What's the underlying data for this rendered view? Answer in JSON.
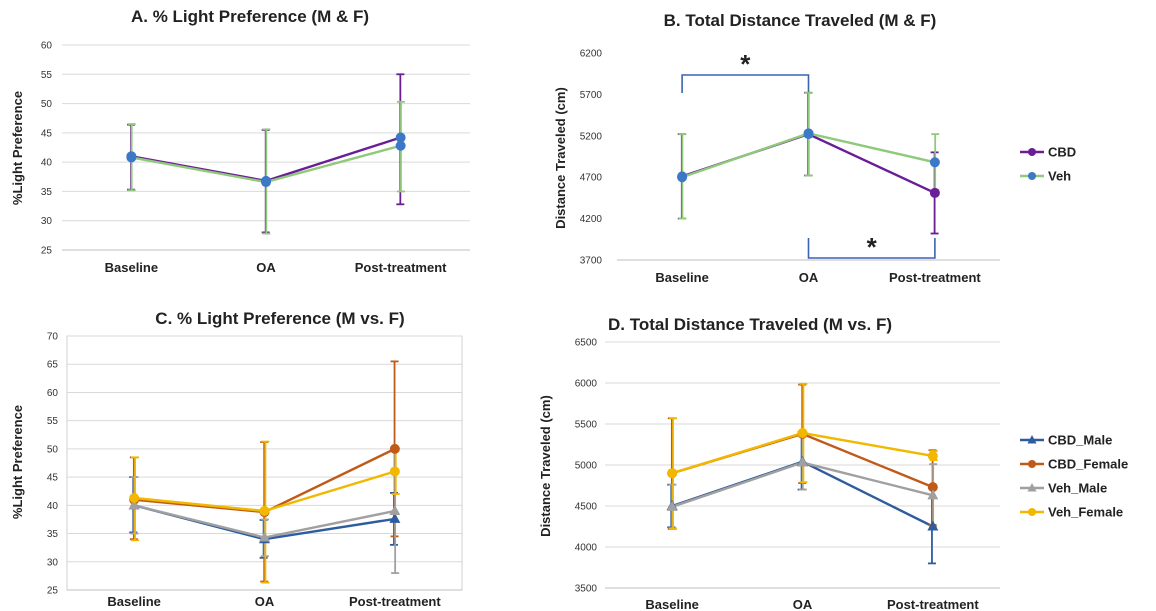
{
  "chart_data": [
    {
      "id": "A",
      "type": "line",
      "title": "A. % Light Preference (M & F)",
      "ylabel": "%Light Preference",
      "xlabel": "",
      "categories": [
        "Baseline",
        "OA",
        "Post-treatment"
      ],
      "ylim": [
        25,
        60
      ],
      "yticks": [
        25,
        30,
        35,
        40,
        45,
        50,
        55,
        60
      ],
      "grid": true,
      "series": [
        {
          "name": "CBD",
          "color": "#6a1e96",
          "marker": "circle",
          "values": [
            41,
            36.8,
            44.2
          ],
          "err_low": [
            35.3,
            28.0,
            32.8
          ],
          "err_high": [
            46.4,
            45.5,
            55.0
          ]
        },
        {
          "name": "Veh",
          "color": "#8fc97a",
          "marker": "circle",
          "values": [
            40.8,
            36.6,
            42.8
          ],
          "err_low": [
            35.2,
            27.8,
            35.0
          ],
          "err_high": [
            46.5,
            45.6,
            50.3
          ]
        }
      ]
    },
    {
      "id": "B",
      "type": "line",
      "title": "B. Total Distance Traveled (M & F)",
      "ylabel": "Distance Traveled (cm)",
      "xlabel": "",
      "categories": [
        "Baseline",
        "OA",
        "Post-treatment"
      ],
      "ylim": [
        3700,
        6200
      ],
      "yticks": [
        3700,
        4200,
        4700,
        5200,
        5700,
        6200
      ],
      "grid": false,
      "legend": {
        "position": "right",
        "entries": [
          "CBD",
          "Veh"
        ]
      },
      "annotations": [
        {
          "text": "*",
          "between": [
            "Baseline",
            "OA"
          ],
          "side": "top"
        },
        {
          "text": "*",
          "between": [
            "OA",
            "Post-treatment"
          ],
          "side": "bottom"
        }
      ],
      "series": [
        {
          "name": "CBD",
          "color": "#6a1e96",
          "marker": "circle",
          "values": [
            4710,
            5220,
            4510
          ],
          "err_low": [
            4200,
            4720,
            4020
          ],
          "err_high": [
            5220,
            5720,
            5000
          ]
        },
        {
          "name": "Veh",
          "color": "#8fc97a",
          "marker": "circle",
          "values": [
            4700,
            5230,
            4880
          ],
          "err_low": [
            4200,
            4720,
            4550
          ],
          "err_high": [
            5220,
            5720,
            5220
          ]
        }
      ]
    },
    {
      "id": "C",
      "type": "line",
      "title": "C. % Light Preference (M vs. F)",
      "ylabel": "%Light  Preference",
      "xlabel": "",
      "categories": [
        "Baseline",
        "OA",
        "Post-treatment"
      ],
      "ylim": [
        25,
        70
      ],
      "yticks": [
        25,
        30,
        35,
        40,
        45,
        50,
        55,
        60,
        65,
        70
      ],
      "grid": true,
      "series": [
        {
          "name": "CBD_Male",
          "color": "#2e5c9e",
          "marker": "triangle",
          "values": [
            40.0,
            34.0,
            37.6
          ],
          "err_low": [
            35.2,
            30.7,
            33.0
          ],
          "err_high": [
            45.0,
            37.4,
            42.2
          ]
        },
        {
          "name": "CBD_Female",
          "color": "#c05a18",
          "marker": "circle",
          "values": [
            41.0,
            38.8,
            50.0
          ],
          "err_low": [
            34.0,
            26.5,
            34.5
          ],
          "err_high": [
            48.5,
            51.2,
            65.5
          ]
        },
        {
          "name": "Veh_Male",
          "color": "#a0a0a0",
          "marker": "triangle",
          "values": [
            40.0,
            34.3,
            39.0
          ],
          "err_low": [
            35.0,
            31.0,
            28.0
          ],
          "err_high": [
            45.0,
            37.5,
            50.2
          ]
        },
        {
          "name": "Veh_Female",
          "color": "#f2b800",
          "marker": "circle",
          "values": [
            41.3,
            39.0,
            46.0
          ],
          "err_low": [
            33.8,
            26.3,
            42.0
          ],
          "err_high": [
            48.5,
            51.3,
            50.0
          ]
        }
      ]
    },
    {
      "id": "D",
      "type": "line",
      "title": "D. Total Distance Traveled (M vs. F)",
      "ylabel": "Distance Traveled (cm)",
      "xlabel": "",
      "categories": [
        "Baseline",
        "OA",
        "Post-treatment"
      ],
      "ylim": [
        3500,
        6500
      ],
      "yticks": [
        3500,
        4000,
        4500,
        5000,
        5500,
        6000,
        6500
      ],
      "grid": true,
      "legend": {
        "position": "right",
        "entries": [
          "CBD_Male",
          "CBD_Female",
          "Veh_Male",
          "Veh_Female"
        ]
      },
      "series": [
        {
          "name": "CBD_Male",
          "color": "#2e5c9e",
          "marker": "triangle",
          "values": [
            4500,
            5040,
            4250
          ],
          "err_low": [
            4240,
            4700,
            3800
          ],
          "err_high": [
            4760,
            5400,
            4720
          ]
        },
        {
          "name": "CBD_Female",
          "color": "#c05a18",
          "marker": "circle",
          "values": [
            4900,
            5380,
            4730
          ],
          "err_low": [
            4220,
            4780,
            4270
          ],
          "err_high": [
            5570,
            5980,
            5180
          ]
        },
        {
          "name": "Veh_Male",
          "color": "#a0a0a0",
          "marker": "triangle",
          "values": [
            4490,
            5030,
            4630
          ],
          "err_low": [
            4230,
            4700,
            4250
          ],
          "err_high": [
            4760,
            5380,
            5010
          ]
        },
        {
          "name": "Veh_Female",
          "color": "#f2b800",
          "marker": "circle",
          "values": [
            4900,
            5390,
            5110
          ],
          "err_low": [
            4220,
            4790,
            5060
          ],
          "err_high": [
            5570,
            5990,
            5170
          ]
        }
      ]
    }
  ]
}
